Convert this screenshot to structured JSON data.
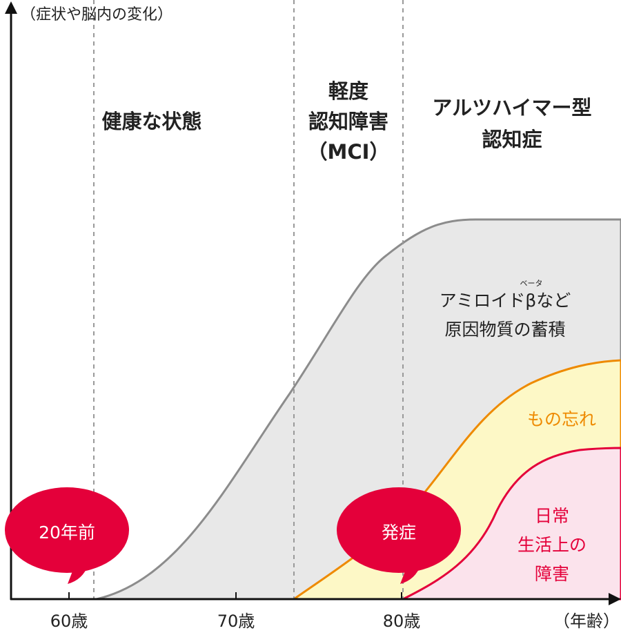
{
  "y_axis_label": "（症状や脳内の変化）",
  "x_axis_label": "（年齢）",
  "x_ticks": [
    "60歳",
    "70歳",
    "80歳"
  ],
  "phases": [
    {
      "lines": [
        "健康な状態"
      ]
    },
    {
      "lines": [
        "軽度",
        "認知障害",
        "（MCI）"
      ]
    },
    {
      "lines": [
        "アルツハイマー型",
        "認知症"
      ]
    }
  ],
  "areas": {
    "amyloid": {
      "lines": [
        "アミロイドβなど",
        "原因物質の蓄積"
      ],
      "ruby": "ベータ",
      "color": "#8c8c8c",
      "fill": "#e8e8e8"
    },
    "forgetfulness": {
      "label": "もの忘れ",
      "color": "#ee8a00",
      "fill": "#fdf8c6"
    },
    "daily_life": {
      "lines": [
        "日常",
        "生活上の",
        "障害"
      ],
      "color": "#e4003a",
      "fill": "#fbe3ec"
    }
  },
  "bubbles": [
    {
      "label": "20年前",
      "color": "#e4003a"
    },
    {
      "label": "発症",
      "color": "#e4003a"
    }
  ]
}
